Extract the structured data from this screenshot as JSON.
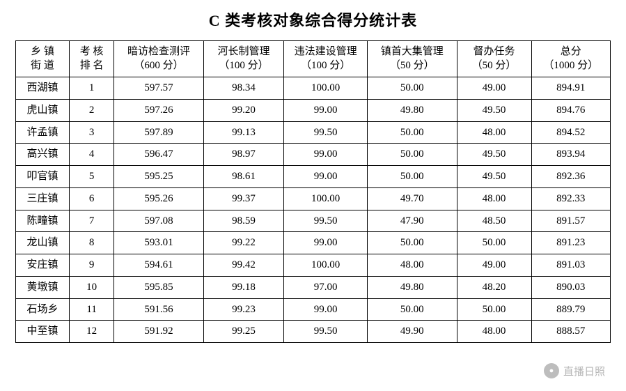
{
  "title": "C 类考核对象综合得分统计表",
  "table": {
    "columns": [
      {
        "line1": "乡 镇",
        "line2": "街 道",
        "class": "col-township"
      },
      {
        "line1": "考 核",
        "line2": "排 名",
        "class": "col-rank"
      },
      {
        "line1": "暗访检查测评",
        "line2": "（600 分）",
        "class": "col-a"
      },
      {
        "line1": "河长制管理",
        "line2": "（100 分）",
        "class": "col-b"
      },
      {
        "line1": "违法建设管理",
        "line2": "（100 分）",
        "class": "col-c"
      },
      {
        "line1": "镇首大集管理",
        "line2": "（50 分）",
        "class": "col-d"
      },
      {
        "line1": "督办任务",
        "line2": "（50 分）",
        "class": "col-e"
      },
      {
        "line1": "总分",
        "line2": "（1000 分）",
        "class": "col-total"
      }
    ],
    "rows": [
      {
        "township": "西湖镇",
        "rank": "1",
        "a": "597.57",
        "b": "98.34",
        "c": "100.00",
        "d": "50.00",
        "e": "49.00",
        "total": "894.91"
      },
      {
        "township": "虎山镇",
        "rank": "2",
        "a": "597.26",
        "b": "99.20",
        "c": "99.00",
        "d": "49.80",
        "e": "49.50",
        "total": "894.76"
      },
      {
        "township": "许孟镇",
        "rank": "3",
        "a": "597.89",
        "b": "99.13",
        "c": "99.50",
        "d": "50.00",
        "e": "48.00",
        "total": "894.52"
      },
      {
        "township": "高兴镇",
        "rank": "4",
        "a": "596.47",
        "b": "98.97",
        "c": "99.00",
        "d": "50.00",
        "e": "49.50",
        "total": "893.94"
      },
      {
        "township": "叩官镇",
        "rank": "5",
        "a": "595.25",
        "b": "98.61",
        "c": "99.00",
        "d": "50.00",
        "e": "49.50",
        "total": "892.36"
      },
      {
        "township": "三庄镇",
        "rank": "6",
        "a": "595.26",
        "b": "99.37",
        "c": "100.00",
        "d": "49.70",
        "e": "48.00",
        "total": "892.33"
      },
      {
        "township": "陈疃镇",
        "rank": "7",
        "a": "597.08",
        "b": "98.59",
        "c": "99.50",
        "d": "47.90",
        "e": "48.50",
        "total": "891.57"
      },
      {
        "township": "龙山镇",
        "rank": "8",
        "a": "593.01",
        "b": "99.22",
        "c": "99.00",
        "d": "50.00",
        "e": "50.00",
        "total": "891.23"
      },
      {
        "township": "安庄镇",
        "rank": "9",
        "a": "594.61",
        "b": "99.42",
        "c": "100.00",
        "d": "48.00",
        "e": "49.00",
        "total": "891.03"
      },
      {
        "township": "黄墩镇",
        "rank": "10",
        "a": "595.85",
        "b": "99.18",
        "c": "97.00",
        "d": "49.80",
        "e": "48.20",
        "total": "890.03"
      },
      {
        "township": "石场乡",
        "rank": "11",
        "a": "591.56",
        "b": "99.23",
        "c": "99.00",
        "d": "50.00",
        "e": "50.00",
        "total": "889.79"
      },
      {
        "township": "中至镇",
        "rank": "12",
        "a": "591.92",
        "b": "99.25",
        "c": "99.50",
        "d": "49.90",
        "e": "48.00",
        "total": "888.57"
      }
    ],
    "border_color": "#000000",
    "background_color": "#ffffff",
    "header_fontsize": 15,
    "cell_fontsize": 15,
    "title_fontsize": 22
  },
  "watermark": {
    "text": "直播日照",
    "logo_text": "●"
  }
}
